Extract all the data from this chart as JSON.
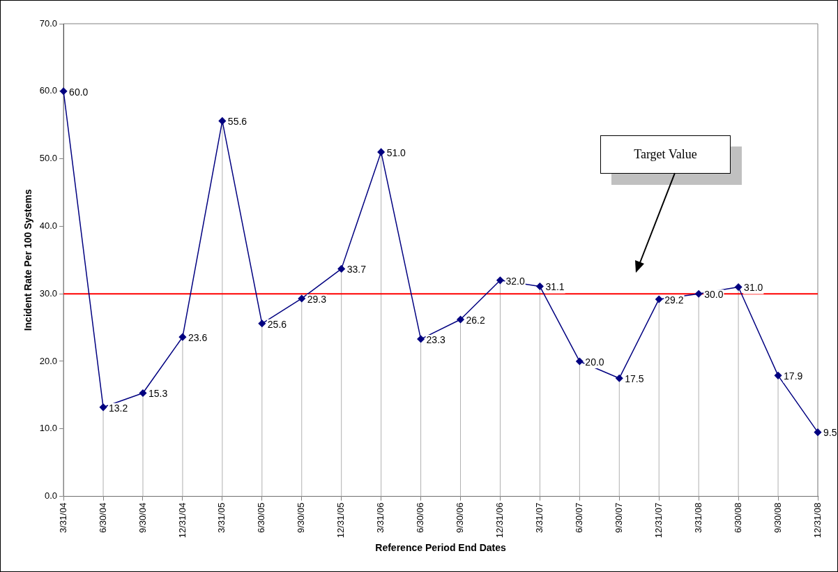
{
  "chart_data": {
    "type": "line",
    "xlabel": "Reference Period End Dates",
    "ylabel": "Incident Rate Per 100 Systems",
    "categories": [
      "3/31/04",
      "6/30/04",
      "9/30/04",
      "12/31/04",
      "3/31/05",
      "6/30/05",
      "9/30/05",
      "12/31/05",
      "3/31/06",
      "6/30/06",
      "9/30/06",
      "12/31/06",
      "3/31/07",
      "6/30/07",
      "9/30/07",
      "12/31/07",
      "3/31/08",
      "6/30/08",
      "9/30/08",
      "12/31/08"
    ],
    "series": [
      {
        "color": "#000080",
        "values": [
          60.0,
          13.2,
          15.3,
          23.6,
          55.6,
          25.6,
          29.3,
          33.7,
          51.0,
          23.3,
          26.2,
          32.0,
          31.1,
          20.0,
          17.5,
          29.2,
          30.0,
          31.0,
          17.9,
          9.5
        ],
        "value_labels": [
          "60.0",
          "13.2",
          "15.3",
          "23.6",
          "55.6",
          "25.6",
          "29.3",
          "33.7",
          "51.0",
          "23.3",
          "26.2",
          "32.0",
          "31.1",
          "20.0",
          "17.5",
          "29.2",
          "30.0",
          "31.0",
          "17.9",
          "9.5"
        ]
      }
    ],
    "ylim": [
      0,
      70
    ],
    "yticks": [
      {
        "value": 0,
        "label": "0.0"
      },
      {
        "value": 10,
        "label": "10.0"
      },
      {
        "value": 20,
        "label": "20.0"
      },
      {
        "value": 30,
        "label": "30.0"
      },
      {
        "value": 40,
        "label": "40.0"
      },
      {
        "value": 50,
        "label": "50.0"
      },
      {
        "value": 60,
        "label": "60.0"
      },
      {
        "value": 70,
        "label": "70.0"
      }
    ],
    "ref_lines": [
      {
        "axis": "y",
        "value": 30,
        "color": "#ff0000"
      }
    ],
    "annotations": [
      "Target Value"
    ],
    "grid": "x",
    "legend": false,
    "marker": "diamond",
    "line_style": "solid"
  }
}
